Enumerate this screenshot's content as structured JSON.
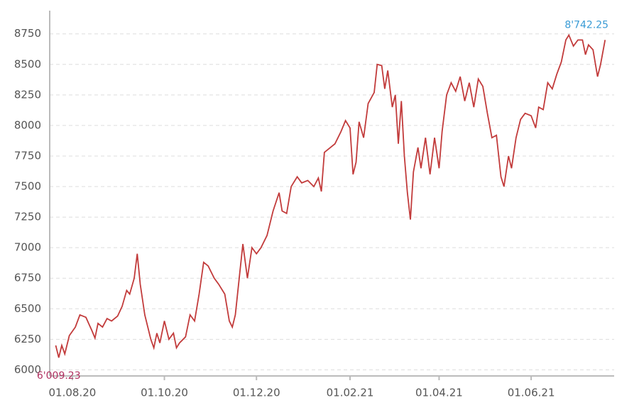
{
  "chart_data": {
    "type": "line",
    "max_label": "8'742.25",
    "max_label_color": "#3a9bd5",
    "min_label": "6'009.23",
    "min_label_color": "#b03060",
    "grid": true,
    "xlim": [
      "2020-07-17",
      "2021-07-26"
    ],
    "xticks": [
      {
        "value": "2020-08-01",
        "label": "01.08.20"
      },
      {
        "value": "2020-10-01",
        "label": "01.10.20"
      },
      {
        "value": "2020-12-01",
        "label": "01.12.20"
      },
      {
        "value": "2021-02-01",
        "label": "01.02.21"
      },
      {
        "value": "2021-04-01",
        "label": "01.04.21"
      },
      {
        "value": "2021-06-01",
        "label": "01.06.21"
      }
    ],
    "ylim": [
      5950,
      8940
    ],
    "yticks": [
      6000,
      6250,
      6500,
      6750,
      7000,
      7250,
      7500,
      7750,
      8000,
      8250,
      8500,
      8750
    ],
    "x": [
      "2020-07-21",
      "2020-07-23",
      "2020-07-25",
      "2020-07-27",
      "2020-07-30",
      "2020-08-03",
      "2020-08-06",
      "2020-08-10",
      "2020-08-14",
      "2020-08-16",
      "2020-08-18",
      "2020-08-21",
      "2020-08-24",
      "2020-08-27",
      "2020-08-31",
      "2020-09-03",
      "2020-09-06",
      "2020-09-08",
      "2020-09-11",
      "2020-09-13",
      "2020-09-15",
      "2020-09-18",
      "2020-09-22",
      "2020-09-24",
      "2020-09-26",
      "2020-09-28",
      "2020-10-01",
      "2020-10-04",
      "2020-10-07",
      "2020-10-09",
      "2020-10-11",
      "2020-10-15",
      "2020-10-18",
      "2020-10-21",
      "2020-10-24",
      "2020-10-27",
      "2020-10-30",
      "2020-11-03",
      "2020-11-06",
      "2020-11-10",
      "2020-11-13",
      "2020-11-15",
      "2020-11-17",
      "2020-11-20",
      "2020-11-22",
      "2020-11-25",
      "2020-11-28",
      "2020-12-01",
      "2020-12-04",
      "2020-12-08",
      "2020-12-12",
      "2020-12-16",
      "2020-12-18",
      "2020-12-21",
      "2020-12-24",
      "2020-12-28",
      "2020-12-31",
      "2021-01-04",
      "2021-01-08",
      "2021-01-11",
      "2021-01-13",
      "2021-01-15",
      "2021-01-19",
      "2021-01-22",
      "2021-01-26",
      "2021-01-29",
      "2021-02-01",
      "2021-02-03",
      "2021-02-05",
      "2021-02-07",
      "2021-02-10",
      "2021-02-13",
      "2021-02-17",
      "2021-02-19",
      "2021-02-22",
      "2021-02-24",
      "2021-02-26",
      "2021-03-01",
      "2021-03-03",
      "2021-03-05",
      "2021-03-07",
      "2021-03-09",
      "2021-03-11",
      "2021-03-13",
      "2021-03-15",
      "2021-03-18",
      "2021-03-20",
      "2021-03-23",
      "2021-03-26",
      "2021-03-29",
      "2021-04-01",
      "2021-04-03",
      "2021-04-06",
      "2021-04-09",
      "2021-04-12",
      "2021-04-15",
      "2021-04-18",
      "2021-04-21",
      "2021-04-24",
      "2021-04-27",
      "2021-04-30",
      "2021-05-03",
      "2021-05-06",
      "2021-05-09",
      "2021-05-12",
      "2021-05-14",
      "2021-05-17",
      "2021-05-19",
      "2021-05-22",
      "2021-05-25",
      "2021-05-28",
      "2021-06-01",
      "2021-06-04",
      "2021-06-06",
      "2021-06-09",
      "2021-06-12",
      "2021-06-15",
      "2021-06-18",
      "2021-06-21",
      "2021-06-24",
      "2021-06-26",
      "2021-06-29",
      "2021-07-02",
      "2021-07-05",
      "2021-07-07",
      "2021-07-09",
      "2021-07-12",
      "2021-07-15",
      "2021-07-17",
      "2021-07-20"
    ],
    "series": [
      {
        "color": "#c23b3b",
        "values": [
          6200,
          6100,
          6200,
          6130,
          6280,
          6350,
          6450,
          6430,
          6320,
          6260,
          6380,
          6350,
          6420,
          6400,
          6440,
          6520,
          6650,
          6620,
          6750,
          6950,
          6700,
          6450,
          6250,
          6180,
          6300,
          6220,
          6400,
          6250,
          6300,
          6180,
          6220,
          6270,
          6450,
          6400,
          6620,
          6880,
          6850,
          6750,
          6700,
          6620,
          6400,
          6350,
          6450,
          6800,
          7030,
          6750,
          7000,
          6950,
          7000,
          7100,
          7300,
          7450,
          7300,
          7280,
          7500,
          7580,
          7530,
          7550,
          7500,
          7570,
          7460,
          7780,
          7820,
          7850,
          7950,
          8040,
          7980,
          7600,
          7700,
          8030,
          7900,
          8180,
          8270,
          8500,
          8490,
          8300,
          8450,
          8150,
          8250,
          7850,
          8200,
          7750,
          7450,
          7230,
          7620,
          7820,
          7650,
          7900,
          7600,
          7900,
          7650,
          7950,
          8250,
          8350,
          8280,
          8400,
          8200,
          8350,
          8150,
          8380,
          8320,
          8100,
          7900,
          7920,
          7580,
          7500,
          7750,
          7650,
          7900,
          8050,
          8100,
          8080,
          7980,
          8150,
          8130,
          8350,
          8300,
          8420,
          8520,
          8700,
          8740,
          8650,
          8700,
          8700,
          8580,
          8660,
          8620,
          8400,
          8500,
          8700
        ]
      }
    ]
  }
}
